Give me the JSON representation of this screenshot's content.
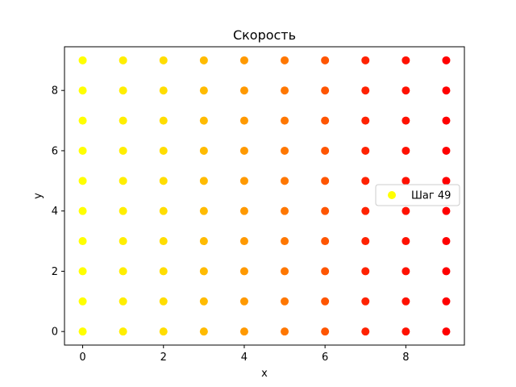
{
  "chart_data": {
    "type": "scatter",
    "title": "Скорость",
    "xlabel": "x",
    "ylabel": "y",
    "xlim": [
      -0.45,
      9.45
    ],
    "ylim": [
      -0.45,
      9.45
    ],
    "xticks": [
      0,
      2,
      4,
      6,
      8
    ],
    "yticks": [
      0,
      2,
      4,
      6,
      8
    ],
    "x_values": [
      0,
      1,
      2,
      3,
      4,
      5,
      6,
      7,
      8,
      9
    ],
    "y_values": [
      0,
      1,
      2,
      3,
      4,
      5,
      6,
      7,
      8,
      9
    ],
    "column_colors": [
      "#ffff00",
      "#ffee00",
      "#ffdd00",
      "#ffbb00",
      "#ff9900",
      "#ff7700",
      "#ff5500",
      "#ff2200",
      "#ff1100",
      "#ff0000"
    ],
    "grid": false,
    "legend": {
      "placement": "center-right",
      "entries": [
        {
          "label": "Шаг 49",
          "color": "#ffff00"
        }
      ]
    }
  }
}
